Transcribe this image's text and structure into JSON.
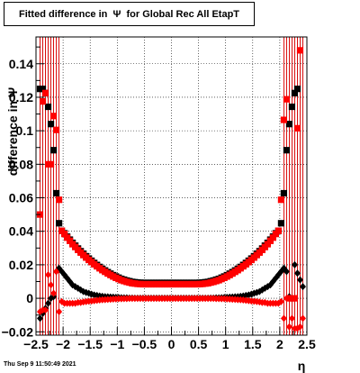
{
  "title": "Fitted difference in  Ψ  for Global Rec All EtapT",
  "timestamp": "Thu Sep  9 11:50:49 2021",
  "chart_data": {
    "type": "scatter",
    "title": "Fitted difference in  Ψ  for Global Rec All EtapT",
    "xlabel": "η",
    "ylabel": "difference in Ψ",
    "xlim": [
      -2.5,
      2.5
    ],
    "ylim": [
      -0.022,
      0.156
    ],
    "grid": true,
    "x_ticks": [
      -2.5,
      -2,
      -1.5,
      -1,
      -0.5,
      0,
      0.5,
      1,
      1.5,
      2,
      2.5
    ],
    "x_tick_labels": [
      "−2.5",
      "−2",
      "−1.5",
      "−1",
      "−0.5",
      "0",
      "0.5",
      "1",
      "1.5",
      "2",
      "2.5"
    ],
    "y_ticks": [
      -0.02,
      0,
      0.02,
      0.04,
      0.06,
      0.08,
      0.1,
      0.12,
      0.14
    ],
    "y_tick_labels": [
      "−0.02",
      "0",
      "0.02",
      "0.04",
      "0.06",
      "0.08",
      "0.1",
      "0.12",
      "0.14"
    ],
    "series_colors": {
      "black": "#000000",
      "red": "#ff0000"
    },
    "series": [
      {
        "color": "black",
        "marker": "square",
        "x": [
          -2.425,
          -2.375,
          -2.325,
          -2.275,
          -2.225,
          -2.175,
          -2.125,
          -2.075,
          -2.025,
          -1.975,
          -1.925,
          -1.875,
          -1.825,
          -1.775,
          -1.725,
          -1.675,
          -1.625,
          -1.575,
          -1.525,
          -1.475,
          -1.425,
          -1.375,
          -1.325,
          -1.275,
          -1.225,
          -1.175,
          -1.125,
          -1.075,
          -1.025,
          -0.975,
          -0.925,
          -0.875,
          -0.825,
          -0.775,
          -0.725,
          -0.675,
          -0.625,
          -0.575,
          -0.525,
          -0.475,
          -0.425,
          -0.375,
          -0.325,
          -0.275,
          -0.225,
          -0.175,
          -0.125,
          -0.075,
          -0.025,
          0.025,
          0.075,
          0.125,
          0.175,
          0.225,
          0.275,
          0.325,
          0.375,
          0.425,
          0.475,
          0.525,
          0.575,
          0.625,
          0.675,
          0.725,
          0.775,
          0.825,
          0.875,
          0.925,
          0.975,
          1.025,
          1.075,
          1.125,
          1.175,
          1.225,
          1.275,
          1.325,
          1.375,
          1.425,
          1.475,
          1.525,
          1.575,
          1.625,
          1.675,
          1.725,
          1.775,
          1.825,
          1.875,
          1.925,
          1.975,
          2.025,
          2.075,
          2.125,
          2.175,
          2.225,
          2.275,
          2.325,
          2.375,
          2.425
        ],
        "y": [
          0.125,
          0.125,
          0.1225,
          0.1143,
          0.104,
          0.0884,
          0.0627,
          0.0448,
          0.0403,
          0.0388,
          0.0368,
          0.035,
          0.0331,
          0.0314,
          0.0297,
          0.0281,
          0.0266,
          0.0251,
          0.0237,
          0.0224,
          0.0211,
          0.0199,
          0.0187,
          0.0176,
          0.0166,
          0.0156,
          0.0147,
          0.0138,
          0.013,
          0.0123,
          0.0116,
          0.0111,
          0.0106,
          0.0102,
          0.0098,
          0.0096,
          0.0094,
          0.0093,
          0.0092,
          0.0092,
          0.0092,
          0.0092,
          0.0092,
          0.0092,
          0.0092,
          0.0092,
          0.0092,
          0.0092,
          0.0092,
          0.0092,
          0.0092,
          0.0092,
          0.0092,
          0.0092,
          0.0092,
          0.0092,
          0.0092,
          0.0092,
          0.0092,
          0.0093,
          0.0094,
          0.0096,
          0.0098,
          0.0102,
          0.0106,
          0.0111,
          0.0116,
          0.0123,
          0.013,
          0.0138,
          0.0147,
          0.0156,
          0.0166,
          0.0176,
          0.0187,
          0.0199,
          0.0211,
          0.0224,
          0.0237,
          0.0251,
          0.0266,
          0.0281,
          0.0297,
          0.0314,
          0.0331,
          0.035,
          0.0368,
          0.0388,
          0.0403,
          0.0448,
          0.0627,
          0.0884,
          0.104,
          0.1143,
          0.1225,
          0.125,
          0.0,
          0.0
        ]
      },
      {
        "color": "black",
        "marker": "diamond",
        "x": [
          -2.425,
          -2.375,
          -2.325,
          -2.275,
          -2.225,
          -2.175,
          -2.125,
          -2.075,
          -2.025,
          -1.975,
          -1.925,
          -1.875,
          -1.825,
          -1.775,
          -1.725,
          -1.675,
          -1.625,
          -1.575,
          -1.525,
          -1.475,
          -1.425,
          -1.375,
          -1.325,
          -1.275,
          -1.225,
          -1.175,
          -1.125,
          -1.075,
          -1.025,
          -0.975,
          -0.925,
          -0.875,
          -0.825,
          -0.775,
          -0.725,
          -0.675,
          -0.625,
          -0.575,
          -0.525,
          -0.475,
          -0.425,
          -0.375,
          -0.325,
          -0.275,
          -0.225,
          -0.175,
          -0.125,
          -0.075,
          -0.025,
          0.025,
          0.075,
          0.125,
          0.175,
          0.225,
          0.275,
          0.325,
          0.375,
          0.425,
          0.475,
          0.525,
          0.575,
          0.625,
          0.675,
          0.725,
          0.775,
          0.825,
          0.875,
          0.925,
          0.975,
          1.025,
          1.075,
          1.125,
          1.175,
          1.225,
          1.275,
          1.325,
          1.375,
          1.425,
          1.475,
          1.525,
          1.575,
          1.625,
          1.675,
          1.725,
          1.775,
          1.825,
          1.875,
          1.925,
          1.975,
          2.025,
          2.075,
          2.125,
          2.175,
          2.225,
          2.275,
          2.325,
          2.375,
          2.425
        ],
        "y": [
          -0.012,
          -0.009,
          -0.006,
          -0.003,
          0.0,
          0.001,
          0.016,
          0.018,
          0.016,
          0.014,
          0.012,
          0.01,
          0.008,
          0.007,
          0.006,
          0.005,
          0.004,
          0.0035,
          0.003,
          0.0025,
          0.002,
          0.0017,
          0.0014,
          0.0012,
          0.001,
          0.0009,
          0.0008,
          0.0007,
          0.0006,
          0.0005,
          0.0004,
          0.0003,
          0.0003,
          0.0002,
          0.0002,
          0.0001,
          0.0001,
          0.0001,
          0.0001,
          0.0001,
          0.0001,
          0.0001,
          0.0001,
          0.0001,
          0.0001,
          0.0001,
          0.0001,
          0.0001,
          0.0001,
          0.0001,
          0.0001,
          0.0001,
          0.0001,
          0.0001,
          0.0001,
          0.0001,
          0.0001,
          0.0001,
          0.0001,
          0.0001,
          0.0001,
          0.0001,
          0.0001,
          0.0002,
          0.0002,
          0.0003,
          0.0003,
          0.0004,
          0.0005,
          0.0006,
          0.0007,
          0.0008,
          0.0009,
          0.001,
          0.0012,
          0.0014,
          0.0017,
          0.002,
          0.0025,
          0.003,
          0.0035,
          0.004,
          0.005,
          0.006,
          0.007,
          0.008,
          0.01,
          0.012,
          0.014,
          0.016,
          0.018,
          0.016,
          0.001,
          0.0,
          0.02,
          0.015,
          0.011,
          0.007
        ]
      },
      {
        "color": "red",
        "marker": "square",
        "x": [
          -2.425,
          -2.375,
          -2.325,
          -2.275,
          -2.225,
          -2.175,
          -2.125,
          -2.075,
          -2.025,
          -1.975,
          -1.925,
          -1.875,
          -1.825,
          -1.775,
          -1.725,
          -1.675,
          -1.625,
          -1.575,
          -1.525,
          -1.475,
          -1.425,
          -1.375,
          -1.325,
          -1.275,
          -1.225,
          -1.175,
          -1.125,
          -1.075,
          -1.025,
          -0.975,
          -0.925,
          -0.875,
          -0.825,
          -0.775,
          -0.725,
          -0.675,
          -0.625,
          -0.575,
          -0.525,
          -0.475,
          -0.425,
          -0.375,
          -0.325,
          -0.275,
          -0.225,
          -0.175,
          -0.125,
          -0.075,
          -0.025,
          0.025,
          0.075,
          0.125,
          0.175,
          0.225,
          0.275,
          0.325,
          0.375,
          0.425,
          0.475,
          0.525,
          0.575,
          0.625,
          0.675,
          0.725,
          0.775,
          0.825,
          0.875,
          0.925,
          0.975,
          1.025,
          1.075,
          1.125,
          1.175,
          1.225,
          1.275,
          1.325,
          1.375,
          1.425,
          1.475,
          1.525,
          1.575,
          1.625,
          1.675,
          1.725,
          1.775,
          1.825,
          1.875,
          1.925,
          1.975,
          2.025,
          2.075,
          2.125,
          2.175,
          2.225,
          2.275,
          2.325,
          2.375,
          2.425
        ],
        "y": [
          0.05,
          0.1175,
          0.1225,
          0.08,
          0.08,
          0.1088,
          0.1005,
          0.0588,
          0.0403,
          0.0384,
          0.0362,
          0.0343,
          0.0323,
          0.0306,
          0.0289,
          0.0273,
          0.0258,
          0.0243,
          0.0229,
          0.0216,
          0.0203,
          0.0191,
          0.0179,
          0.0168,
          0.0158,
          0.0148,
          0.0139,
          0.013,
          0.0122,
          0.0115,
          0.0108,
          0.0103,
          0.0098,
          0.0094,
          0.009,
          0.0088,
          0.0086,
          0.0085,
          0.0084,
          0.0084,
          0.0084,
          0.0084,
          0.0084,
          0.0084,
          0.0084,
          0.0084,
          0.0084,
          0.0084,
          0.0084,
          0.0084,
          0.0084,
          0.0084,
          0.0084,
          0.0084,
          0.0084,
          0.0084,
          0.0084,
          0.0084,
          0.0084,
          0.0085,
          0.0086,
          0.0088,
          0.009,
          0.0094,
          0.0098,
          0.0103,
          0.0108,
          0.0115,
          0.0122,
          0.013,
          0.0139,
          0.0148,
          0.0158,
          0.0168,
          0.0179,
          0.0191,
          0.0203,
          0.0216,
          0.0229,
          0.0243,
          0.0258,
          0.0273,
          0.0289,
          0.0306,
          0.0323,
          0.0343,
          0.0362,
          0.0384,
          0.0403,
          0.0588,
          0.1065,
          0.1188,
          0.0,
          0.0,
          0.0,
          0.1015,
          0.148,
          0.0
        ]
      },
      {
        "color": "red",
        "marker": "diamond",
        "x": [
          -2.425,
          -2.375,
          -2.325,
          -2.275,
          -2.225,
          -2.175,
          -2.125,
          -2.075,
          -2.025,
          -1.975,
          -1.925,
          -1.875,
          -1.825,
          -1.775,
          -1.725,
          -1.675,
          -1.625,
          -1.575,
          -1.525,
          -1.475,
          -1.425,
          -1.375,
          -1.325,
          -1.275,
          -1.225,
          -1.175,
          -1.125,
          -1.075,
          -1.025,
          -0.975,
          -0.925,
          -0.875,
          -0.825,
          -0.775,
          -0.725,
          -0.675,
          -0.625,
          -0.575,
          -0.525,
          -0.475,
          -0.425,
          -0.375,
          -0.325,
          -0.275,
          -0.225,
          -0.175,
          -0.125,
          -0.075,
          -0.025,
          0.025,
          0.075,
          0.125,
          0.175,
          0.225,
          0.275,
          0.325,
          0.375,
          0.425,
          0.475,
          0.525,
          0.575,
          0.625,
          0.675,
          0.725,
          0.775,
          0.825,
          0.875,
          0.925,
          0.975,
          1.025,
          1.075,
          1.125,
          1.175,
          1.225,
          1.275,
          1.325,
          1.375,
          1.425,
          1.475,
          1.525,
          1.575,
          1.625,
          1.675,
          1.725,
          1.775,
          1.825,
          1.875,
          1.925,
          1.975,
          2.025,
          2.075,
          2.125,
          2.175,
          2.225,
          2.275,
          2.325,
          2.375,
          2.425
        ],
        "y": [
          -0.008,
          -0.007,
          -0.007,
          0.014,
          0.008,
          0.003,
          0.016,
          -0.008,
          -0.002,
          -0.003,
          -0.003,
          -0.003,
          -0.003,
          -0.003,
          -0.0025,
          -0.0025,
          -0.0022,
          -0.002,
          -0.0018,
          -0.0016,
          -0.0014,
          -0.0012,
          -0.001,
          -0.0009,
          -0.0008,
          -0.0007,
          -0.0006,
          -0.0005,
          -0.0004,
          -0.0003,
          -0.0003,
          -0.0002,
          -0.0002,
          -0.0001,
          -0.0001,
          -0.0001,
          -0.0001,
          -0.0001,
          -0.0001,
          -0.0001,
          -0.0001,
          -0.0001,
          -0.0001,
          -0.0001,
          -0.0001,
          -0.0001,
          -0.0001,
          -0.0001,
          -0.0001,
          -0.0001,
          -0.0001,
          -0.0001,
          -0.0001,
          -0.0001,
          -0.0001,
          -0.0001,
          -0.0001,
          -0.0001,
          -0.0001,
          -0.0001,
          -0.0001,
          -0.0001,
          -0.0001,
          -0.0001,
          -0.0001,
          -0.0002,
          -0.0002,
          -0.0003,
          -0.0003,
          -0.0004,
          -0.0005,
          -0.0006,
          -0.0007,
          -0.0008,
          -0.0009,
          -0.001,
          -0.0012,
          -0.0014,
          -0.0016,
          -0.0018,
          -0.002,
          -0.0022,
          -0.0025,
          -0.0025,
          -0.003,
          -0.003,
          -0.003,
          -0.003,
          -0.003,
          -0.002,
          -0.012,
          0.0,
          -0.017,
          -0.012,
          -0.018,
          -0.018,
          -0.017,
          -0.012
        ]
      }
    ]
  }
}
